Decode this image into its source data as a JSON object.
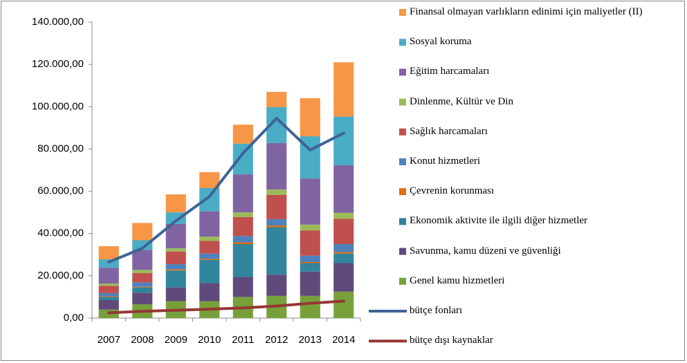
{
  "chart_data": {
    "type": "bar",
    "stacked": true,
    "categories": [
      "2007",
      "2008",
      "2009",
      "2010",
      "2011",
      "2012",
      "2013",
      "2014"
    ],
    "ylim": [
      0,
      140000
    ],
    "yticks": [
      {
        "value": 0,
        "label": "0,00"
      },
      {
        "value": 20000,
        "label": "20.000,00"
      },
      {
        "value": 40000,
        "label": "40.000,00"
      },
      {
        "value": 60000,
        "label": "60.000,00"
      },
      {
        "value": 80000,
        "label": "80.000,00"
      },
      {
        "value": 100000,
        "label": "100.000,00"
      },
      {
        "value": 120000,
        "label": "120.000,00"
      },
      {
        "value": 140000,
        "label": "140.000,00"
      }
    ],
    "grid": false,
    "legend": "right",
    "series": [
      {
        "name": "Genel kamu hizmetleri",
        "color": "#77a03b",
        "values": [
          4000,
          6500,
          8000,
          8000,
          10000,
          10500,
          10500,
          12500
        ]
      },
      {
        "name": "Savunma, kamu düzeni ve güvenliği",
        "color": "#604a7b",
        "values": [
          4500,
          5500,
          6500,
          8500,
          9500,
          10000,
          11500,
          13500
        ]
      },
      {
        "name": "Ekonomik aktivite ile ilgili diğer hizmetler",
        "color": "#31859c",
        "values": [
          1500,
          2500,
          8000,
          11000,
          15500,
          22500,
          4000,
          4500
        ]
      },
      {
        "name": "Çevrenin korunması",
        "color": "#e46c0a",
        "values": [
          300,
          300,
          500,
          500,
          800,
          800,
          500,
          700
        ]
      },
      {
        "name": "Konut hizmetleri",
        "color": "#4f81bd",
        "values": [
          1500,
          2000,
          2500,
          2500,
          3000,
          3000,
          3000,
          3800
        ]
      },
      {
        "name": "Sağlık harcamaları",
        "color": "#c0504d",
        "values": [
          3500,
          4500,
          6000,
          6000,
          9000,
          11500,
          12000,
          12000
        ]
      },
      {
        "name": "Dinlenme, Kültür ve Din",
        "color": "#9bbb59",
        "values": [
          1000,
          1500,
          1500,
          2000,
          2200,
          2500,
          2700,
          2800
        ]
      },
      {
        "name": "Eğitim harcamaları",
        "color": "#8064a2",
        "values": [
          7500,
          9500,
          11500,
          12000,
          18000,
          22000,
          21800,
          22500
        ]
      },
      {
        "name": "Sosyal koruma",
        "color": "#4bacc6",
        "values": [
          4000,
          4500,
          5500,
          11000,
          14500,
          17000,
          20000,
          23000
        ]
      },
      {
        "name": "Finansal olmayan varlıkların edinimi için maliyetler (II)",
        "color": "#f79646",
        "values": [
          6200,
          8200,
          8500,
          7500,
          9000,
          7200,
          18000,
          25700
        ]
      },
      {
        "name": "bütçe fonları",
        "type": "line",
        "color": "#3c6496",
        "values": [
          26500,
          33000,
          46000,
          57500,
          78000,
          94500,
          79500,
          87500
        ]
      },
      {
        "name": "bütçe dışı kaynaklar",
        "type": "line",
        "color": "#953735",
        "values": [
          2500,
          3200,
          3700,
          4200,
          4800,
          5700,
          7000,
          8000
        ]
      }
    ]
  }
}
